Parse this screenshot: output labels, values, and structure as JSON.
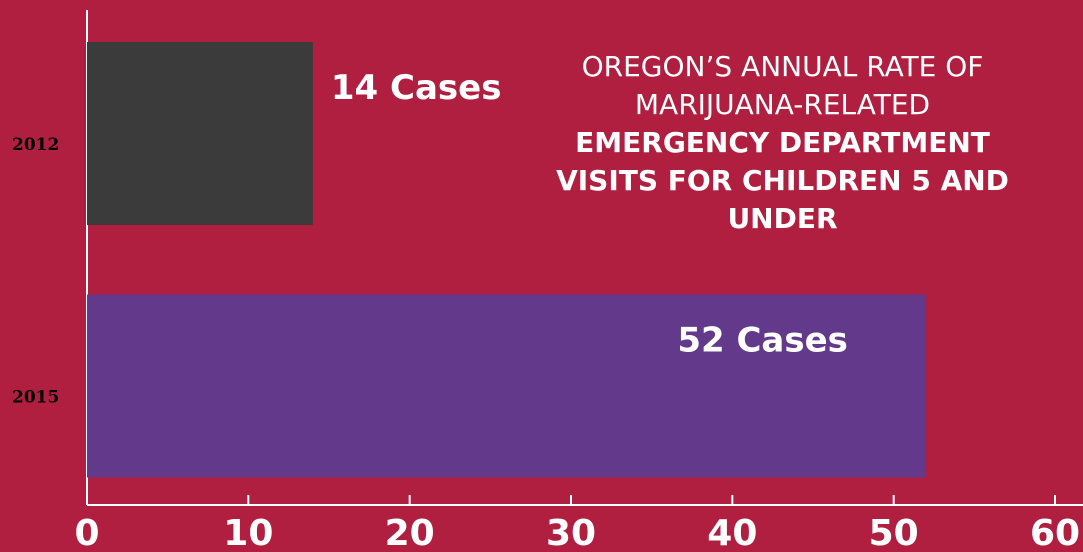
{
  "chart_data": {
    "type": "bar",
    "orientation": "horizontal",
    "title": "OREGON’S ANNUAL RATE OF MARIJUANA-RELATED",
    "subtitle": "EMERGENCY DEPARTMENT VISITS FOR CHILDREN 5 AND UNDER",
    "categories": [
      "2012",
      "2015"
    ],
    "values": [
      14,
      52
    ],
    "value_labels": [
      "14 Cases",
      "52 Cases"
    ],
    "colors": [
      "#3b3b3b",
      "#62398b"
    ],
    "xlim": [
      0,
      60
    ],
    "xticks": [
      0,
      10,
      20,
      30,
      40,
      50,
      60
    ]
  }
}
